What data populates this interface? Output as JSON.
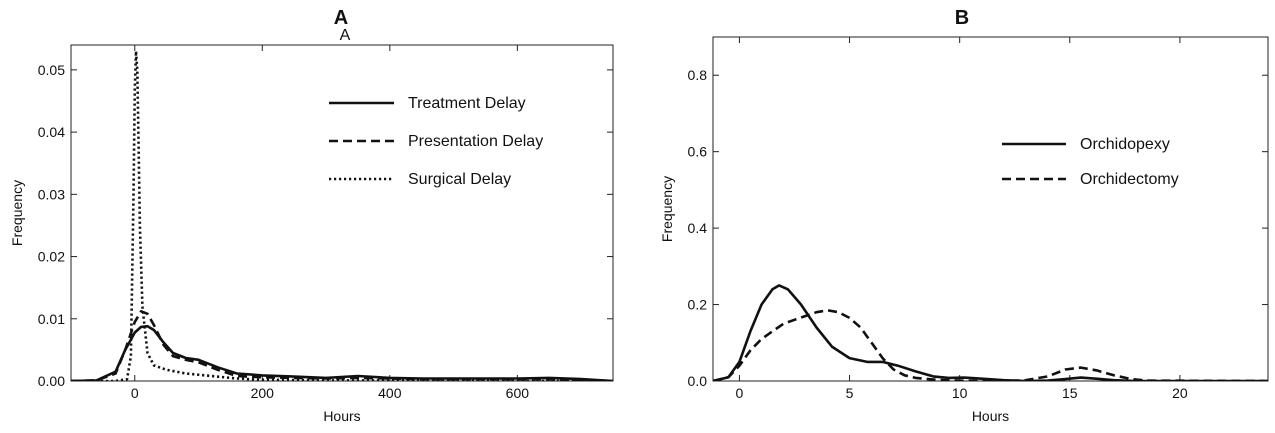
{
  "figure": {
    "panel_a_label": "A",
    "panel_a_sublabel": "A",
    "panel_b_label": "B"
  },
  "chart_data": [
    {
      "type": "line",
      "panel": "A",
      "xlabel": "Hours",
      "ylabel": "Frequency",
      "xlim": [
        -100,
        750
      ],
      "ylim": [
        0,
        0.054
      ],
      "x_ticks": [
        0,
        200,
        400,
        600
      ],
      "y_ticks": [
        0.0,
        0.01,
        0.02,
        0.03,
        0.04,
        0.05
      ],
      "x_tick_labels": [
        "0",
        "200",
        "400",
        "600"
      ],
      "y_tick_labels": [
        "0.00",
        "0.01",
        "0.02",
        "0.03",
        "0.04",
        "0.05"
      ],
      "grid": false,
      "legend_position": "top-right",
      "series": [
        {
          "name": "Treatment Delay",
          "style": "solid",
          "x": [
            -100,
            -60,
            -30,
            -15,
            0,
            10,
            20,
            30,
            45,
            60,
            80,
            100,
            130,
            160,
            200,
            250,
            300,
            350,
            400,
            450,
            500,
            550,
            600,
            650,
            700,
            750
          ],
          "y": [
            0,
            0.0001,
            0.0015,
            0.005,
            0.0078,
            0.0087,
            0.0088,
            0.0082,
            0.0062,
            0.0045,
            0.0037,
            0.0034,
            0.0022,
            0.0012,
            0.0009,
            0.0007,
            0.0005,
            0.0008,
            0.0005,
            0.0004,
            0.0004,
            0.0004,
            0.0004,
            0.0005,
            0.0003,
            0
          ]
        },
        {
          "name": "Presentation Delay",
          "style": "dashed",
          "x": [
            -100,
            -60,
            -30,
            -15,
            0,
            10,
            20,
            30,
            45,
            60,
            80,
            100,
            130,
            160,
            200,
            250,
            300,
            350,
            400,
            450,
            500,
            550,
            600,
            650,
            700,
            750
          ],
          "y": [
            0,
            0.0001,
            0.0012,
            0.005,
            0.0095,
            0.0112,
            0.0108,
            0.009,
            0.0058,
            0.004,
            0.0034,
            0.003,
            0.0018,
            0.0008,
            0.0006,
            0.0005,
            0.0004,
            0.0005,
            0.0004,
            0.0003,
            0.0003,
            0.0003,
            0.0003,
            0.0003,
            0.0002,
            0
          ]
        },
        {
          "name": "Surgical Delay",
          "style": "dotted",
          "x": [
            -100,
            -30,
            -12,
            -6,
            -2,
            0,
            2,
            4,
            6,
            8,
            12,
            20,
            30,
            50,
            80,
            120,
            160,
            200,
            300,
            400,
            500,
            600,
            750
          ],
          "y": [
            0,
            0,
            0.0003,
            0.004,
            0.03,
            0.047,
            0.053,
            0.05,
            0.038,
            0.025,
            0.012,
            0.0045,
            0.0025,
            0.0018,
            0.0012,
            0.0008,
            0.0004,
            0.0002,
            0.0001,
            0.0001,
            0.0001,
            0,
            0
          ]
        }
      ]
    },
    {
      "type": "line",
      "panel": "B",
      "xlabel": "Hours",
      "ylabel": "Frequency",
      "xlim": [
        -1.2,
        24
      ],
      "ylim": [
        0,
        0.9
      ],
      "x_ticks": [
        0,
        5,
        10,
        15,
        20
      ],
      "y_ticks": [
        0.0,
        0.2,
        0.4,
        0.6,
        0.8
      ],
      "x_tick_labels": [
        "0",
        "5",
        "10",
        "15",
        "20"
      ],
      "y_tick_labels": [
        "0.0",
        "0.2",
        "0.4",
        "0.6",
        "0.8"
      ],
      "grid": false,
      "legend_position": "top-right",
      "series": [
        {
          "name": "Orchidopexy",
          "style": "solid",
          "x": [
            -1.2,
            -0.5,
            0,
            0.5,
            1,
            1.5,
            1.8,
            2.2,
            2.8,
            3.5,
            4.2,
            5,
            5.8,
            6.5,
            7.2,
            8,
            8.8,
            9.5,
            10.2,
            11,
            12,
            13,
            14,
            14.8,
            15.5,
            16.2,
            17,
            18,
            24
          ],
          "y": [
            0,
            0.01,
            0.05,
            0.13,
            0.2,
            0.24,
            0.25,
            0.24,
            0.2,
            0.14,
            0.09,
            0.06,
            0.05,
            0.05,
            0.04,
            0.025,
            0.012,
            0.008,
            0.009,
            0.006,
            0.002,
            0,
            0.001,
            0.005,
            0.009,
            0.006,
            0.002,
            0,
            0
          ]
        },
        {
          "name": "Orchidectomy",
          "style": "dashed",
          "x": [
            -1.2,
            -0.5,
            0,
            0.5,
            1,
            1.5,
            2,
            2.5,
            3,
            3.5,
            4,
            4.5,
            5,
            5.5,
            6,
            6.5,
            7,
            7.5,
            8,
            9,
            10,
            11,
            12,
            13,
            14,
            14.8,
            15.5,
            16.2,
            17,
            17.8,
            18.5,
            24
          ],
          "y": [
            0,
            0.01,
            0.04,
            0.08,
            0.11,
            0.13,
            0.15,
            0.16,
            0.17,
            0.18,
            0.185,
            0.18,
            0.165,
            0.14,
            0.1,
            0.06,
            0.03,
            0.015,
            0.008,
            0.003,
            0.001,
            0,
            0,
            0.002,
            0.012,
            0.03,
            0.035,
            0.028,
            0.015,
            0.005,
            0.001,
            0
          ]
        }
      ]
    }
  ]
}
